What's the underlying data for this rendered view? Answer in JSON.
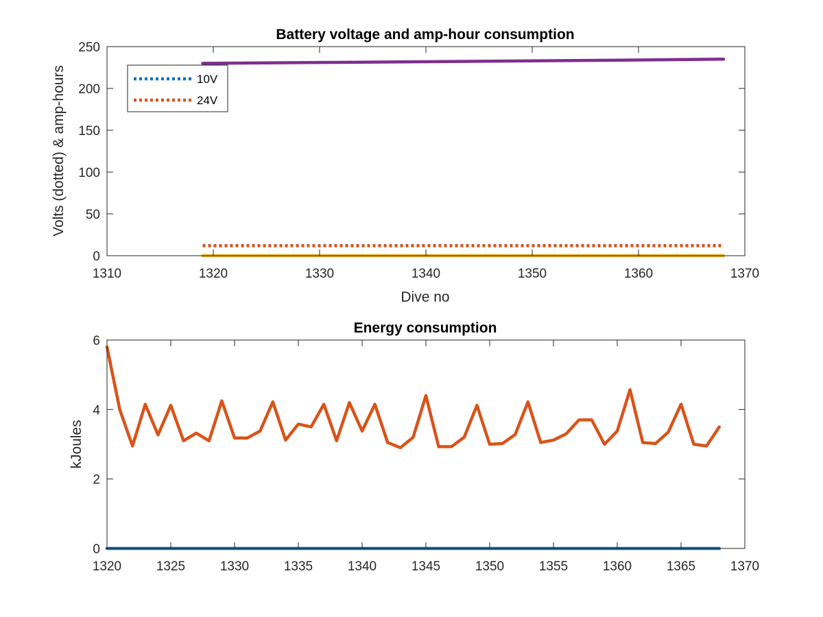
{
  "chart_data": [
    {
      "type": "line",
      "title": "Battery voltage and amp-hour consumption",
      "xlabel": "Dive no",
      "ylabel": "Volts (dotted) & amp-hours",
      "xlim": [
        1310,
        1370
      ],
      "ylim": [
        0,
        250
      ],
      "xticks": [
        1310,
        1320,
        1330,
        1340,
        1350,
        1360,
        1370
      ],
      "yticks": [
        0,
        50,
        100,
        150,
        200,
        250
      ],
      "grid": false,
      "legend_position": "top-left",
      "series": [
        {
          "name": "10V",
          "style": "dotted",
          "color": "#0072BD",
          "x": [
            1319,
            1368
          ],
          "values": [
            12,
            12
          ]
        },
        {
          "name": "24V",
          "style": "dotted",
          "color": "#D95319",
          "x": [
            1319,
            1368
          ],
          "values": [
            12,
            12
          ]
        },
        {
          "style": "solid",
          "color": "#EDB120",
          "x": [
            1319,
            1368
          ],
          "values": [
            0,
            0
          ]
        },
        {
          "style": "solid",
          "color": "#7E2F8E",
          "x": [
            1319,
            1330,
            1340,
            1350,
            1360,
            1368
          ],
          "values": [
            230,
            231,
            232,
            233,
            234,
            235
          ]
        }
      ]
    },
    {
      "type": "line",
      "title": "Energy consumption",
      "xlabel": "",
      "ylabel": "kJoules",
      "xlim": [
        1320,
        1370
      ],
      "ylim": [
        0,
        6
      ],
      "xticks": [
        1320,
        1325,
        1330,
        1335,
        1340,
        1345,
        1350,
        1355,
        1360,
        1365,
        1370
      ],
      "yticks": [
        0,
        2,
        4,
        6
      ],
      "grid": false,
      "series": [
        {
          "style": "solid",
          "color": "#0072BD",
          "x": [
            1320,
            1368
          ],
          "values": [
            0,
            0
          ]
        },
        {
          "style": "solid",
          "color": "#D95319",
          "x": [
            1320,
            1321,
            1322,
            1323,
            1324,
            1325,
            1326,
            1327,
            1328,
            1329,
            1330,
            1331,
            1332,
            1333,
            1334,
            1335,
            1336,
            1337,
            1338,
            1339,
            1340,
            1341,
            1342,
            1343,
            1344,
            1345,
            1346,
            1347,
            1348,
            1349,
            1350,
            1351,
            1352,
            1353,
            1354,
            1355,
            1356,
            1357,
            1358,
            1359,
            1360,
            1361,
            1362,
            1363,
            1364,
            1365,
            1366,
            1367,
            1368
          ],
          "values": [
            5.8,
            4.0,
            2.95,
            4.15,
            3.27,
            4.12,
            3.1,
            3.32,
            3.1,
            4.25,
            3.18,
            3.18,
            3.38,
            4.22,
            3.12,
            3.58,
            3.5,
            4.15,
            3.1,
            4.2,
            3.38,
            4.15,
            3.05,
            2.9,
            3.2,
            4.4,
            2.93,
            2.93,
            3.2,
            4.12,
            3.0,
            3.02,
            3.28,
            4.22,
            3.05,
            3.12,
            3.3,
            3.7,
            3.7,
            3.0,
            3.38,
            4.57,
            3.05,
            3.02,
            3.35,
            4.15,
            3.0,
            2.95,
            3.5
          ]
        }
      ]
    }
  ]
}
